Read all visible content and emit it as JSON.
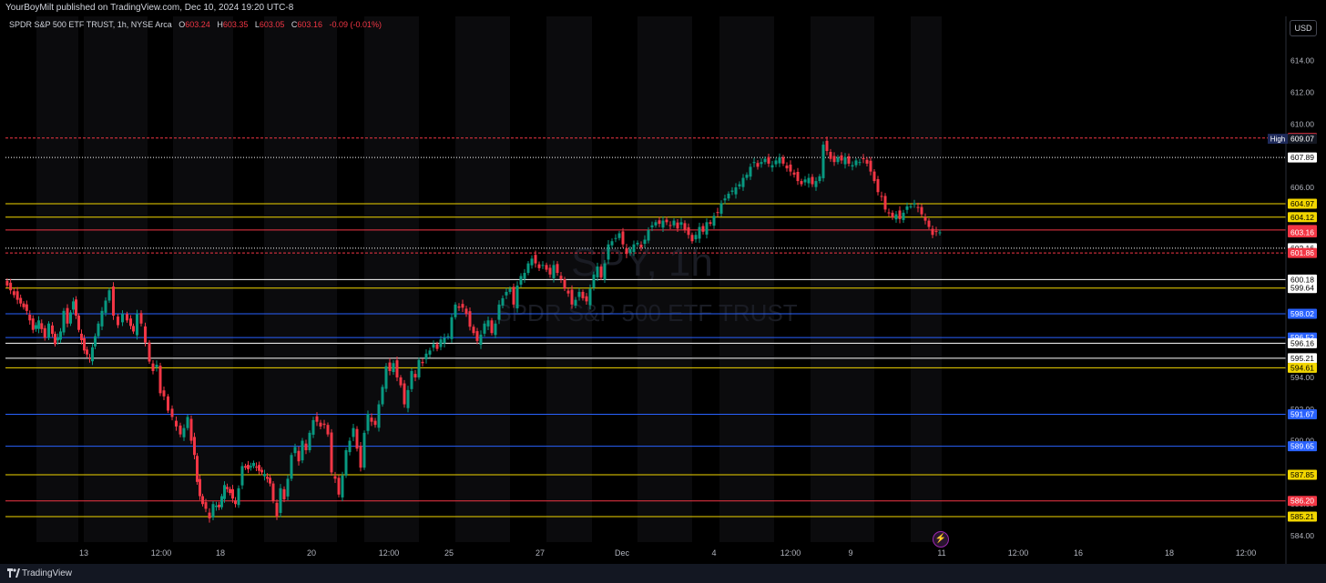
{
  "header": {
    "published": "YourBoyMilt published on TradingView.com, Dec 10, 2024 19:20 UTC-8"
  },
  "legend": {
    "symbol": "SPDR S&P 500 ETF TRUST, 1h, NYSE Arca",
    "open_label": "O",
    "open": "603.24",
    "high_label": "H",
    "high": "603.35",
    "low_label": "L",
    "low": "603.05",
    "close_label": "C",
    "close": "603.16",
    "change": "-0.09 (-0.01%)"
  },
  "currency_button": "USD",
  "footer": {
    "brand": "TradingView"
  },
  "watermark": {
    "ticker": "SPY, 1h",
    "name": "SPDR S&P 500 ETF TRUST"
  },
  "colors": {
    "up": "#089981",
    "down": "#f23645",
    "yellow": "#f2d600",
    "blue": "#2962ff",
    "white": "#ffffff",
    "red": "#f23645"
  },
  "chart_data": {
    "type": "candlestick",
    "y_axis_ticks": [
      "616.00",
      "614.00",
      "612.00",
      "610.00",
      "608.00",
      "606.00",
      "604.00",
      "602.00",
      "600.00",
      "598.00",
      "596.00",
      "594.00",
      "592.00",
      "590.00",
      "588.00",
      "586.00",
      "584.00"
    ],
    "x_axis_labels": [
      "13",
      "12:00",
      "18",
      "20",
      "12:00",
      "25",
      "27",
      "Dec",
      "4",
      "12:00",
      "9",
      "11",
      "12:00",
      "16",
      "18",
      "12:00"
    ],
    "ylim": [
      583.6,
      616.8
    ],
    "price_lines": [
      {
        "value": "609.12",
        "color": "red",
        "style": "dashed"
      },
      {
        "value": "607.89",
        "color": "white",
        "style": "dotted"
      },
      {
        "value": "604.97",
        "color": "yellow",
        "style": "solid"
      },
      {
        "value": "604.12",
        "color": "yellow",
        "style": "solid"
      },
      {
        "value": "603.31",
        "color": "red",
        "style": "solid"
      },
      {
        "value": "602.16",
        "color": "white",
        "style": "dotted"
      },
      {
        "value": "601.86",
        "color": "red",
        "style": "dashed"
      },
      {
        "value": "600.18",
        "color": "white",
        "style": "solid"
      },
      {
        "value": "599.64",
        "color": "yellow",
        "style": "solid"
      },
      {
        "value": "598.02",
        "color": "blue",
        "style": "solid"
      },
      {
        "value": "596.52",
        "color": "blue",
        "style": "solid"
      },
      {
        "value": "596.16",
        "color": "white",
        "style": "solid"
      },
      {
        "value": "595.21",
        "color": "white",
        "style": "solid"
      },
      {
        "value": "594.61",
        "color": "yellow",
        "style": "solid"
      },
      {
        "value": "591.67",
        "color": "blue",
        "style": "solid"
      },
      {
        "value": "589.65",
        "color": "blue",
        "style": "solid"
      },
      {
        "value": "587.85",
        "color": "yellow",
        "style": "solid"
      },
      {
        "value": "586.20",
        "color": "red",
        "style": "solid"
      },
      {
        "value": "585.21",
        "color": "yellow",
        "style": "solid"
      }
    ],
    "price_labels": [
      {
        "value": "609.12",
        "bg": "#f23645",
        "fg": "#ffffff"
      },
      {
        "value": "609.07",
        "bg": "#131722",
        "fg": "#ffffff",
        "tag": "High"
      },
      {
        "value": "607.89",
        "bg": "#ffffff",
        "fg": "#000000"
      },
      {
        "value": "604.97",
        "bg": "#f2d600",
        "fg": "#000000"
      },
      {
        "value": "604.12",
        "bg": "#f2d600",
        "fg": "#000000"
      },
      {
        "value": "603.31",
        "bg": "#f23645",
        "fg": "#ffffff"
      },
      {
        "value": "603.16",
        "bg": "#f23645",
        "fg": "#ffffff"
      },
      {
        "value": "602.16",
        "bg": "#ffffff",
        "fg": "#000000"
      },
      {
        "value": "601.86",
        "bg": "#f23645",
        "fg": "#ffffff"
      },
      {
        "value": "600.18",
        "bg": "#ffffff",
        "fg": "#000000"
      },
      {
        "value": "599.64",
        "bg": "#ffffff",
        "fg": "#000000"
      },
      {
        "value": "598.02",
        "bg": "#2962ff",
        "fg": "#ffffff"
      },
      {
        "value": "596.52",
        "bg": "#2962ff",
        "fg": "#ffffff"
      },
      {
        "value": "596.16",
        "bg": "#ffffff",
        "fg": "#000000"
      },
      {
        "value": "595.21",
        "bg": "#ffffff",
        "fg": "#000000"
      },
      {
        "value": "594.61",
        "bg": "#f2d600",
        "fg": "#000000"
      },
      {
        "value": "591.67",
        "bg": "#2962ff",
        "fg": "#ffffff"
      },
      {
        "value": "589.65",
        "bg": "#2962ff",
        "fg": "#ffffff"
      },
      {
        "value": "587.85",
        "bg": "#f2d600",
        "fg": "#000000"
      },
      {
        "value": "586.20",
        "bg": "#f23645",
        "fg": "#ffffff"
      },
      {
        "value": "585.21",
        "bg": "#f2d600",
        "fg": "#000000"
      }
    ],
    "path_points": [
      [
        0,
        600.1
      ],
      [
        15,
        598.9
      ],
      [
        25,
        598.2
      ],
      [
        32,
        597.0
      ],
      [
        38,
        597.6
      ],
      [
        45,
        596.5
      ],
      [
        50,
        597.4
      ],
      [
        56,
        596.1
      ],
      [
        62,
        596.9
      ],
      [
        66,
        598.2
      ],
      [
        70,
        597.4
      ],
      [
        76,
        598.8
      ],
      [
        82,
        597.0
      ],
      [
        88,
        595.7
      ],
      [
        94,
        595.2
      ],
      [
        100,
        596.6
      ],
      [
        108,
        598.2
      ],
      [
        116,
        599.5
      ],
      [
        121,
        597.9
      ],
      [
        126,
        597.3
      ],
      [
        131,
        598.0
      ],
      [
        136,
        597.6
      ],
      [
        142,
        596.9
      ],
      [
        147,
        598.0
      ],
      [
        151,
        597.4
      ],
      [
        156,
        596.2
      ],
      [
        160,
        595.0
      ],
      [
        164,
        594.4
      ],
      [
        168,
        594.8
      ],
      [
        172,
        593.0
      ],
      [
        176,
        592.8
      ],
      [
        181,
        591.9
      ],
      [
        185,
        591.5
      ],
      [
        190,
        590.9
      ],
      [
        194,
        590.4
      ],
      [
        198,
        590.8
      ],
      [
        202,
        591.5
      ],
      [
        206,
        590.0
      ],
      [
        209,
        589.1
      ],
      [
        212,
        587.4
      ],
      [
        215,
        586.5
      ],
      [
        218,
        586.0
      ],
      [
        222,
        585.7
      ],
      [
        226,
        585.1
      ],
      [
        230,
        586.0
      ],
      [
        236,
        585.8
      ],
      [
        242,
        587.2
      ],
      [
        248,
        586.7
      ],
      [
        254,
        586.0
      ],
      [
        258,
        587.0
      ],
      [
        262,
        588.4
      ],
      [
        268,
        588.2
      ],
      [
        274,
        588.6
      ],
      [
        280,
        588.1
      ],
      [
        286,
        587.9
      ],
      [
        292,
        587.3
      ],
      [
        296,
        586.2
      ],
      [
        300,
        585.2
      ],
      [
        304,
        587.0
      ],
      [
        308,
        586.3
      ],
      [
        312,
        587.6
      ],
      [
        316,
        589.1
      ],
      [
        320,
        589.6
      ],
      [
        324,
        588.7
      ],
      [
        328,
        590.0
      ],
      [
        332,
        589.4
      ],
      [
        336,
        590.5
      ],
      [
        340,
        591.3
      ],
      [
        344,
        591.2
      ],
      [
        348,
        590.9
      ],
      [
        352,
        591.0
      ],
      [
        356,
        590.4
      ],
      [
        360,
        588.0
      ],
      [
        364,
        587.6
      ],
      [
        368,
        586.6
      ],
      [
        372,
        587.8
      ],
      [
        376,
        589.4
      ],
      [
        380,
        590.0
      ],
      [
        384,
        590.8
      ],
      [
        388,
        589.5
      ],
      [
        392,
        588.3
      ],
      [
        396,
        590.5
      ],
      [
        400,
        591.7
      ],
      [
        404,
        591.2
      ],
      [
        408,
        591.0
      ],
      [
        412,
        592.3
      ],
      [
        416,
        593.4
      ],
      [
        420,
        594.7
      ],
      [
        424,
        594.4
      ],
      [
        428,
        594.9
      ],
      [
        432,
        594.0
      ],
      [
        436,
        593.5
      ],
      [
        440,
        592.3
      ],
      [
        444,
        593.2
      ],
      [
        448,
        594.4
      ],
      [
        452,
        594.0
      ],
      [
        456,
        595.1
      ],
      [
        460,
        594.9
      ],
      [
        464,
        595.5
      ],
      [
        468,
        595.7
      ],
      [
        472,
        596.1
      ],
      [
        476,
        595.8
      ],
      [
        480,
        596.4
      ],
      [
        484,
        596.5
      ],
      [
        488,
        596.6
      ],
      [
        492,
        597.8
      ],
      [
        496,
        598.6
      ],
      [
        500,
        598.4
      ],
      [
        504,
        598.4
      ],
      [
        508,
        598.0
      ],
      [
        512,
        597.2
      ],
      [
        516,
        596.8
      ],
      [
        520,
        596.3
      ],
      [
        524,
        596.7
      ],
      [
        528,
        597.4
      ],
      [
        532,
        597.6
      ],
      [
        536,
        596.8
      ],
      [
        540,
        597.4
      ],
      [
        544,
        598.6
      ],
      [
        548,
        599.0
      ],
      [
        552,
        599.4
      ],
      [
        556,
        599.6
      ],
      [
        560,
        598.6
      ],
      [
        564,
        599.8
      ],
      [
        568,
        600.4
      ],
      [
        572,
        600.6
      ],
      [
        576,
        601.2
      ],
      [
        580,
        601.5
      ],
      [
        584,
        601.2
      ],
      [
        588,
        600.9
      ],
      [
        592,
        601.1
      ],
      [
        596,
        600.8
      ],
      [
        600,
        600.5
      ],
      [
        604,
        601.1
      ],
      [
        608,
        600.6
      ],
      [
        612,
        600.2
      ],
      [
        616,
        599.6
      ],
      [
        620,
        599.3
      ],
      [
        624,
        598.6
      ],
      [
        628,
        598.9
      ],
      [
        632,
        599.4
      ],
      [
        636,
        599.0
      ],
      [
        640,
        598.8
      ],
      [
        644,
        599.6
      ],
      [
        648,
        600.5
      ],
      [
        652,
        601.0
      ],
      [
        656,
        600.3
      ],
      [
        660,
        601.2
      ],
      [
        664,
        602.4
      ],
      [
        668,
        602.6
      ],
      [
        672,
        602.8
      ],
      [
        676,
        603.1
      ],
      [
        680,
        602.4
      ],
      [
        684,
        601.8
      ],
      [
        688,
        602.1
      ],
      [
        692,
        602.4
      ],
      [
        696,
        602.5
      ],
      [
        700,
        602.2
      ],
      [
        704,
        602.7
      ],
      [
        708,
        603.3
      ],
      [
        712,
        603.6
      ],
      [
        716,
        603.8
      ],
      [
        720,
        603.7
      ],
      [
        724,
        603.9
      ],
      [
        728,
        603.8
      ],
      [
        732,
        603.6
      ],
      [
        736,
        603.9
      ],
      [
        740,
        603.4
      ],
      [
        744,
        603.8
      ],
      [
        748,
        603.3
      ],
      [
        752,
        603.0
      ],
      [
        756,
        602.6
      ],
      [
        760,
        603.0
      ],
      [
        764,
        603.5
      ],
      [
        768,
        603.2
      ],
      [
        772,
        603.8
      ],
      [
        776,
        603.7
      ],
      [
        780,
        604.2
      ],
      [
        784,
        604.4
      ],
      [
        788,
        605.0
      ],
      [
        792,
        605.3
      ],
      [
        796,
        605.6
      ],
      [
        800,
        605.8
      ],
      [
        804,
        606.0
      ],
      [
        808,
        606.2
      ],
      [
        812,
        606.6
      ],
      [
        816,
        606.8
      ],
      [
        820,
        607.3
      ],
      [
        824,
        607.6
      ],
      [
        828,
        607.3
      ],
      [
        832,
        607.6
      ],
      [
        836,
        607.8
      ],
      [
        840,
        607.5
      ],
      [
        844,
        607.4
      ],
      [
        848,
        607.7
      ],
      [
        852,
        607.9
      ],
      [
        856,
        607.5
      ],
      [
        860,
        607.2
      ],
      [
        864,
        607.0
      ],
      [
        868,
        606.8
      ],
      [
        872,
        606.4
      ],
      [
        876,
        606.2
      ],
      [
        880,
        606.5
      ],
      [
        884,
        606.6
      ],
      [
        888,
        606.2
      ],
      [
        892,
        606.4
      ],
      [
        896,
        606.7
      ],
      [
        900,
        608.7
      ],
      [
        904,
        608.3
      ],
      [
        908,
        607.8
      ],
      [
        912,
        607.6
      ],
      [
        916,
        607.9
      ],
      [
        920,
        607.7
      ],
      [
        924,
        607.9
      ],
      [
        928,
        607.5
      ],
      [
        932,
        607.4
      ],
      [
        936,
        607.7
      ],
      [
        940,
        607.6
      ],
      [
        944,
        607.8
      ],
      [
        948,
        607.5
      ],
      [
        952,
        607.0
      ],
      [
        956,
        606.4
      ],
      [
        960,
        605.7
      ],
      [
        964,
        605.4
      ],
      [
        968,
        604.6
      ],
      [
        972,
        604.4
      ],
      [
        976,
        604.1
      ],
      [
        980,
        604.3
      ],
      [
        984,
        604.0
      ],
      [
        988,
        604.4
      ],
      [
        992,
        604.8
      ],
      [
        996,
        604.8
      ],
      [
        1000,
        605.0
      ],
      [
        1004,
        604.7
      ],
      [
        1008,
        604.3
      ],
      [
        1012,
        603.9
      ],
      [
        1016,
        603.5
      ],
      [
        1020,
        603.0
      ],
      [
        1024,
        603.2
      ],
      [
        1028,
        603.16
      ]
    ]
  }
}
